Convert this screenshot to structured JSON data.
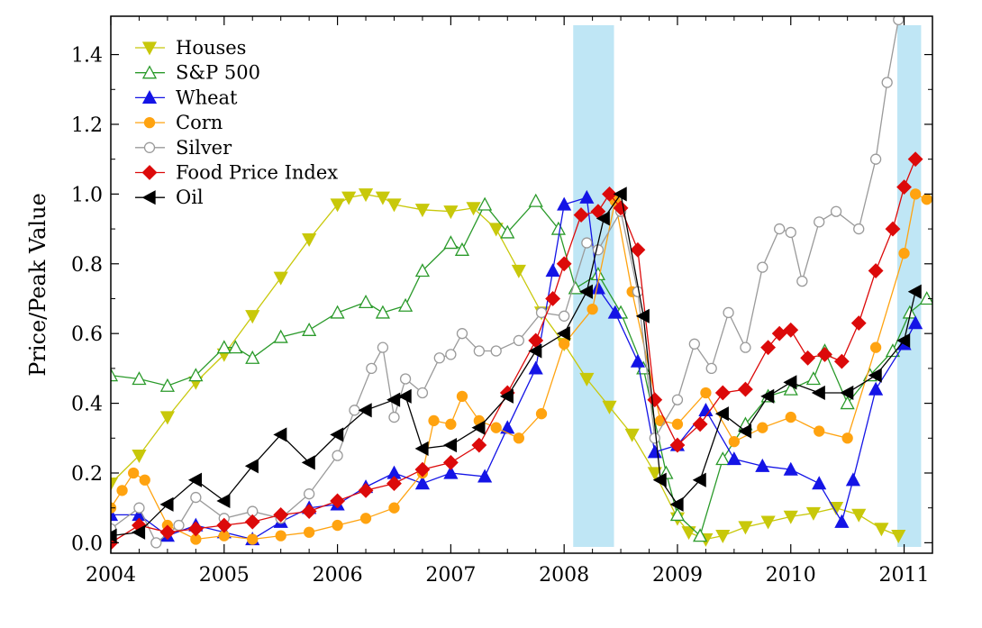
{
  "chart_data": {
    "type": "line",
    "title": "",
    "xlabel": "",
    "ylabel": "Price/Peak Value",
    "xlim": [
      2004.0,
      2011.25
    ],
    "ylim": [
      -0.03,
      1.51
    ],
    "x_ticks": [
      2004,
      2005,
      2006,
      2007,
      2008,
      2009,
      2010,
      2011
    ],
    "x_tick_labels": [
      "2004",
      "2005",
      "2006",
      "2007",
      "2008",
      "2009",
      "2010",
      "2011"
    ],
    "y_ticks": [
      0.0,
      0.2,
      0.4,
      0.6,
      0.8,
      1.0,
      1.2,
      1.4
    ],
    "y_tick_labels": [
      "0.0",
      "0.2",
      "0.4",
      "0.6",
      "0.8",
      "1.0",
      "1.2",
      "1.4"
    ],
    "grid": false,
    "legend_position": "top-left",
    "shaded_periods": [
      {
        "start": 2008.08,
        "end": 2008.44,
        "color": "#bfe6f5"
      },
      {
        "start": 2010.94,
        "end": 2011.15,
        "color": "#bfe6f5"
      }
    ],
    "series": [
      {
        "name": "Houses",
        "color": "#c8c80a",
        "marker": "tri-down",
        "filled": true,
        "x": [
          2004.0,
          2004.25,
          2004.5,
          2004.75,
          2005.0,
          2005.25,
          2005.5,
          2005.75,
          2006.0,
          2006.1,
          2006.25,
          2006.4,
          2006.5,
          2006.75,
          2007.0,
          2007.2,
          2007.4,
          2007.6,
          2007.8,
          2008.0,
          2008.2,
          2008.4,
          2008.6,
          2008.8,
          2009.0,
          2009.1,
          2009.25,
          2009.4,
          2009.6,
          2009.8,
          2010.0,
          2010.2,
          2010.4,
          2010.6,
          2010.8,
          2010.95
        ],
        "y": [
          0.17,
          0.25,
          0.36,
          0.46,
          0.54,
          0.65,
          0.76,
          0.87,
          0.97,
          0.99,
          0.999,
          0.99,
          0.97,
          0.955,
          0.95,
          0.96,
          0.9,
          0.78,
          0.66,
          0.57,
          0.47,
          0.39,
          0.31,
          0.2,
          0.07,
          0.03,
          0.01,
          0.02,
          0.045,
          0.06,
          0.075,
          0.085,
          0.1,
          0.08,
          0.04,
          0.02
        ]
      },
      {
        "name": "S&P 500",
        "color": "#2a9a2a",
        "marker": "tri-up",
        "filled": false,
        "x": [
          2004.0,
          2004.25,
          2004.5,
          2004.75,
          2005.0,
          2005.1,
          2005.25,
          2005.5,
          2005.75,
          2006.0,
          2006.25,
          2006.4,
          2006.6,
          2006.75,
          2007.0,
          2007.1,
          2007.3,
          2007.5,
          2007.75,
          2007.95,
          2008.1,
          2008.3,
          2008.5,
          2008.7,
          2008.9,
          2009.0,
          2009.2,
          2009.4,
          2009.6,
          2009.8,
          2010.0,
          2010.2,
          2010.3,
          2010.5,
          2010.7,
          2010.9,
          2011.05,
          2011.2
        ],
        "y": [
          0.48,
          0.47,
          0.45,
          0.48,
          0.56,
          0.56,
          0.53,
          0.59,
          0.61,
          0.66,
          0.69,
          0.66,
          0.68,
          0.78,
          0.86,
          0.84,
          0.97,
          0.89,
          0.98,
          0.9,
          0.73,
          0.77,
          0.66,
          0.5,
          0.2,
          0.08,
          0.02,
          0.24,
          0.34,
          0.42,
          0.44,
          0.47,
          0.55,
          0.4,
          0.48,
          0.55,
          0.66,
          0.7
        ]
      },
      {
        "name": "Wheat",
        "color": "#1414e6",
        "marker": "tri-up",
        "filled": true,
        "x": [
          2004.0,
          2004.25,
          2004.5,
          2004.75,
          2005.0,
          2005.25,
          2005.5,
          2005.75,
          2006.0,
          2006.25,
          2006.5,
          2006.75,
          2007.0,
          2007.3,
          2007.5,
          2007.75,
          2007.9,
          2008.0,
          2008.2,
          2008.3,
          2008.45,
          2008.65,
          2008.8,
          2009.0,
          2009.25,
          2009.5,
          2009.75,
          2010.0,
          2010.25,
          2010.45,
          2010.55,
          2010.75,
          2011.0,
          2011.1
        ],
        "y": [
          0.08,
          0.08,
          0.02,
          0.05,
          0.03,
          0.01,
          0.06,
          0.1,
          0.11,
          0.16,
          0.2,
          0.17,
          0.2,
          0.19,
          0.33,
          0.5,
          0.78,
          0.97,
          0.99,
          0.73,
          0.66,
          0.52,
          0.26,
          0.28,
          0.38,
          0.24,
          0.22,
          0.21,
          0.17,
          0.06,
          0.18,
          0.44,
          0.57,
          0.63
        ]
      },
      {
        "name": "Corn",
        "color": "#ffa310",
        "marker": "circle",
        "filled": true,
        "x": [
          2004.0,
          2004.1,
          2004.2,
          2004.3,
          2004.5,
          2004.75,
          2005.0,
          2005.25,
          2005.5,
          2005.75,
          2006.0,
          2006.25,
          2006.5,
          2006.75,
          2006.85,
          2007.0,
          2007.1,
          2007.25,
          2007.4,
          2007.6,
          2007.8,
          2008.0,
          2008.25,
          2008.45,
          2008.6,
          2008.85,
          2009.0,
          2009.25,
          2009.5,
          2009.75,
          2010.0,
          2010.25,
          2010.5,
          2010.75,
          2011.0,
          2011.1,
          2011.2
        ],
        "y": [
          0.1,
          0.15,
          0.2,
          0.18,
          0.05,
          0.01,
          0.02,
          0.01,
          0.02,
          0.03,
          0.05,
          0.07,
          0.1,
          0.2,
          0.35,
          0.34,
          0.42,
          0.35,
          0.33,
          0.3,
          0.37,
          0.57,
          0.67,
          0.98,
          0.72,
          0.35,
          0.34,
          0.43,
          0.29,
          0.33,
          0.36,
          0.32,
          0.3,
          0.56,
          0.83,
          1.0,
          0.985
        ]
      },
      {
        "name": "Silver",
        "color": "#9a9a9a",
        "marker": "circle",
        "filled": false,
        "x": [
          2004.0,
          2004.25,
          2004.4,
          2004.6,
          2004.75,
          2005.0,
          2005.25,
          2005.5,
          2005.75,
          2006.0,
          2006.15,
          2006.3,
          2006.4,
          2006.5,
          2006.6,
          2006.75,
          2006.9,
          2007.0,
          2007.1,
          2007.25,
          2007.4,
          2007.6,
          2007.8,
          2008.0,
          2008.2,
          2008.3,
          2008.5,
          2008.65,
          2008.8,
          2009.0,
          2009.15,
          2009.3,
          2009.45,
          2009.6,
          2009.75,
          2009.9,
          2010.0,
          2010.1,
          2010.25,
          2010.4,
          2010.6,
          2010.75,
          2010.85,
          2010.95
        ],
        "y": [
          0.04,
          0.1,
          0.0,
          0.05,
          0.13,
          0.07,
          0.09,
          0.07,
          0.14,
          0.25,
          0.38,
          0.5,
          0.56,
          0.36,
          0.47,
          0.43,
          0.53,
          0.54,
          0.6,
          0.55,
          0.55,
          0.58,
          0.66,
          0.65,
          0.86,
          0.84,
          0.95,
          0.72,
          0.3,
          0.41,
          0.57,
          0.5,
          0.66,
          0.56,
          0.79,
          0.9,
          0.89,
          0.75,
          0.92,
          0.95,
          0.9,
          1.1,
          1.32,
          1.5
        ]
      },
      {
        "name": "Food Price Index",
        "color": "#dc0a0a",
        "marker": "diamond",
        "filled": true,
        "x": [
          2004.0,
          2004.25,
          2004.5,
          2004.75,
          2005.0,
          2005.25,
          2005.5,
          2005.75,
          2006.0,
          2006.25,
          2006.5,
          2006.75,
          2007.0,
          2007.25,
          2007.5,
          2007.75,
          2007.9,
          2008.0,
          2008.15,
          2008.3,
          2008.4,
          2008.5,
          2008.65,
          2008.8,
          2009.0,
          2009.2,
          2009.4,
          2009.6,
          2009.8,
          2009.9,
          2010.0,
          2010.15,
          2010.3,
          2010.45,
          2010.6,
          2010.75,
          2010.9,
          2011.0,
          2011.1
        ],
        "y": [
          0.0,
          0.05,
          0.03,
          0.04,
          0.05,
          0.06,
          0.08,
          0.09,
          0.12,
          0.15,
          0.17,
          0.21,
          0.23,
          0.28,
          0.43,
          0.58,
          0.7,
          0.8,
          0.94,
          0.95,
          1.0,
          0.96,
          0.84,
          0.41,
          0.28,
          0.34,
          0.43,
          0.44,
          0.56,
          0.6,
          0.61,
          0.53,
          0.54,
          0.52,
          0.63,
          0.78,
          0.9,
          1.02,
          1.1
        ]
      },
      {
        "name": "Oil",
        "color": "#000000",
        "marker": "tri-left",
        "filled": true,
        "x": [
          2004.0,
          2004.25,
          2004.5,
          2004.75,
          2005.0,
          2005.25,
          2005.5,
          2005.75,
          2006.0,
          2006.25,
          2006.5,
          2006.6,
          2006.75,
          2007.0,
          2007.25,
          2007.5,
          2007.75,
          2008.0,
          2008.2,
          2008.35,
          2008.5,
          2008.7,
          2008.85,
          2009.0,
          2009.2,
          2009.4,
          2009.6,
          2009.8,
          2010.0,
          2010.25,
          2010.5,
          2010.75,
          2011.0,
          2011.1
        ],
        "y": [
          0.02,
          0.03,
          0.11,
          0.18,
          0.12,
          0.22,
          0.31,
          0.23,
          0.31,
          0.38,
          0.41,
          0.42,
          0.27,
          0.28,
          0.33,
          0.42,
          0.55,
          0.6,
          0.72,
          0.93,
          1.0,
          0.65,
          0.18,
          0.11,
          0.18,
          0.37,
          0.32,
          0.42,
          0.46,
          0.43,
          0.43,
          0.48,
          0.58,
          0.72
        ]
      }
    ]
  }
}
